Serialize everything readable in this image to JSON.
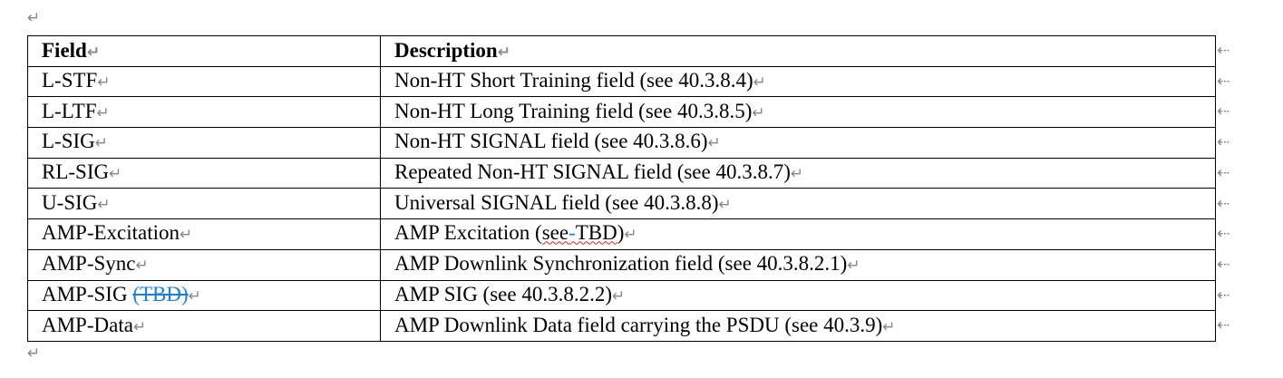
{
  "paragraph_mark": "↵",
  "table": {
    "headers": [
      "Field",
      "Description"
    ],
    "rows": [
      {
        "field": "L-STF",
        "description": "Non-HT Short Training field (see 40.3.8.4)"
      },
      {
        "field": "L-LTF",
        "description": "Non-HT Long Training field (see 40.3.8.5)"
      },
      {
        "field": "L-SIG",
        "description": "Non-HT SIGNAL field (see 40.3.8.6)"
      },
      {
        "field": "RL-SIG",
        "description": "Repeated Non-HT SIGNAL field (see 40.3.8.7)"
      },
      {
        "field": "U-SIG",
        "description": "Universal SIGNAL field (see 40.3.8.8)"
      },
      {
        "field": "AMP-Excitation",
        "description": "AMP Excitation (see-TBD)"
      },
      {
        "field": "AMP-Sync",
        "description": "AMP Downlink Synchronization field (see 40.3.8.2.1)"
      },
      {
        "field": "AMP-SIG",
        "field_deleted": "(TBD)",
        "description": "AMP SIG (see 40.3.8.2.2)"
      },
      {
        "field": "AMP-Data",
        "description": "AMP Downlink Data field carrying the PSDU (see 40.3.9)"
      }
    ]
  },
  "colors": {
    "revision": "#1f7fd6",
    "spell_error": "#e02020",
    "marks": "#888888"
  }
}
